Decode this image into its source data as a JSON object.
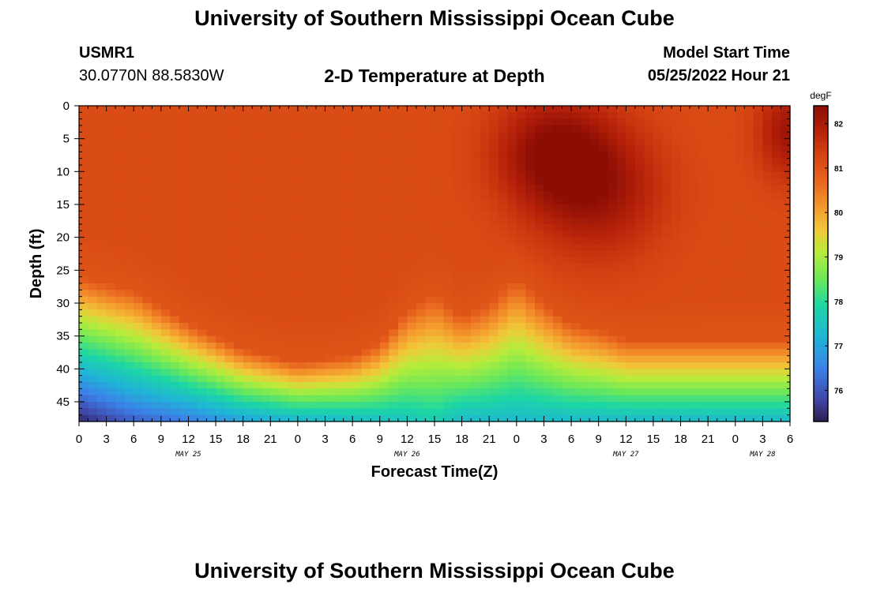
{
  "title": "University of Southern Mississippi Ocean Cube",
  "station_id": "USMR1",
  "coordinates": "30.0770N  88.5830W",
  "subtitle": "2-D Temperature at Depth",
  "model_start_label": "Model Start Time",
  "model_start_value": "05/25/2022 Hour 21",
  "footer_title": "University of Southern Mississippi Ocean Cube",
  "chart_data": {
    "type": "heatmap",
    "title": "2-D Temperature at Depth",
    "xlabel": "Forecast Time(Z)",
    "ylabel": "Depth (ft)",
    "x_range_hours": [
      0,
      78
    ],
    "y_range_ft": [
      0,
      48
    ],
    "x_ticks": [
      {
        "hour": 0,
        "label": "0"
      },
      {
        "hour": 3,
        "label": "3"
      },
      {
        "hour": 6,
        "label": "6"
      },
      {
        "hour": 9,
        "label": "9"
      },
      {
        "hour": 12,
        "label": "12"
      },
      {
        "hour": 15,
        "label": "15"
      },
      {
        "hour": 18,
        "label": "18"
      },
      {
        "hour": 21,
        "label": "21"
      },
      {
        "hour": 24,
        "label": "0"
      },
      {
        "hour": 27,
        "label": "3"
      },
      {
        "hour": 30,
        "label": "6"
      },
      {
        "hour": 33,
        "label": "9"
      },
      {
        "hour": 36,
        "label": "12"
      },
      {
        "hour": 39,
        "label": "15"
      },
      {
        "hour": 42,
        "label": "18"
      },
      {
        "hour": 45,
        "label": "21"
      },
      {
        "hour": 48,
        "label": "0"
      },
      {
        "hour": 51,
        "label": "3"
      },
      {
        "hour": 54,
        "label": "6"
      },
      {
        "hour": 57,
        "label": "9"
      },
      {
        "hour": 60,
        "label": "12"
      },
      {
        "hour": 63,
        "label": "15"
      },
      {
        "hour": 66,
        "label": "18"
      },
      {
        "hour": 69,
        "label": "21"
      },
      {
        "hour": 72,
        "label": "0"
      },
      {
        "hour": 75,
        "label": "3"
      },
      {
        "hour": 78,
        "label": "6"
      }
    ],
    "day_labels": [
      {
        "hour": 12,
        "label": "MAY 25"
      },
      {
        "hour": 36,
        "label": "MAY 26"
      },
      {
        "hour": 60,
        "label": "MAY 27"
      },
      {
        "hour": 75,
        "label": "MAY 28"
      }
    ],
    "y_ticks": [
      0,
      5,
      10,
      15,
      20,
      25,
      30,
      35,
      40,
      45
    ],
    "colorbar": {
      "unit": "degF",
      "range": [
        75.3,
        82.4
      ],
      "ticks": [
        76,
        77,
        78,
        79,
        80,
        81,
        82
      ],
      "colors": [
        {
          "v": 75.3,
          "c": "#2d1e4e"
        },
        {
          "v": 75.8,
          "c": "#4046a8"
        },
        {
          "v": 76.5,
          "c": "#3b82e8"
        },
        {
          "v": 77.2,
          "c": "#1fb5d6"
        },
        {
          "v": 77.9,
          "c": "#1dd6a4"
        },
        {
          "v": 78.5,
          "c": "#6be85a"
        },
        {
          "v": 79.1,
          "c": "#b8ec3a"
        },
        {
          "v": 79.6,
          "c": "#f0c93a"
        },
        {
          "v": 80.1,
          "c": "#f59a2e"
        },
        {
          "v": 80.7,
          "c": "#e8661e"
        },
        {
          "v": 81.3,
          "c": "#d54312"
        },
        {
          "v": 81.8,
          "c": "#b8230a"
        },
        {
          "v": 82.4,
          "c": "#8c0d04"
        }
      ]
    },
    "grid_resolution": {
      "dx_hours": 1,
      "dy_ft": 1
    },
    "temperature_model": {
      "description": "Approximate temperature field (degF) read from the image: warm mixed layer ~81.2 degF with warmer pockets near hours 48-57 and 77, thermocline depth varying between ~26 ft and ~42 ft, coldest water at bottom-left.",
      "mixed_layer_temp": 81.15,
      "thermocline_depth_points": [
        [
          0,
          26
        ],
        [
          6,
          28
        ],
        [
          12,
          33
        ],
        [
          18,
          37
        ],
        [
          24,
          39
        ],
        [
          30,
          38
        ],
        [
          33,
          36
        ],
        [
          36,
          31
        ],
        [
          39,
          28.5
        ],
        [
          42,
          32
        ],
        [
          45,
          30
        ],
        [
          48,
          26
        ],
        [
          51,
          30
        ],
        [
          54,
          33
        ],
        [
          57,
          34
        ],
        [
          60,
          35.5
        ],
        [
          66,
          35.5
        ],
        [
          72,
          35.5
        ],
        [
          78,
          35.5
        ]
      ],
      "bottom_temp_points": [
        [
          0,
          75.4
        ],
        [
          6,
          76.1
        ],
        [
          12,
          76.4
        ],
        [
          18,
          76.9
        ],
        [
          24,
          77.2
        ],
        [
          30,
          77.3
        ],
        [
          33,
          77.4
        ],
        [
          36,
          77.5
        ],
        [
          39,
          77.7
        ],
        [
          42,
          77.3
        ],
        [
          48,
          77.3
        ],
        [
          60,
          77.3
        ],
        [
          78,
          77.3
        ]
      ],
      "warm_pockets": [
        {
          "hour": 52,
          "depth": 7,
          "amp": 1.15,
          "sx": 4.5,
          "sy": 6
        },
        {
          "hour": 57,
          "depth": 13,
          "amp": 0.95,
          "sx": 5,
          "sy": 7
        },
        {
          "hour": 78,
          "depth": 4,
          "amp": 1.0,
          "sx": 2.5,
          "sy": 5
        }
      ]
    }
  }
}
